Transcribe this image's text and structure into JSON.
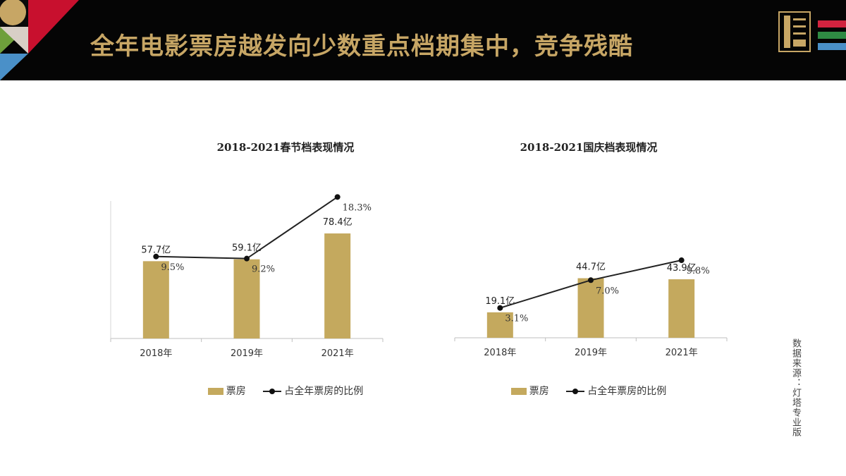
{
  "header": {
    "title": "全年电影票房越发向少数重点档期集中，竞争残酷",
    "accent_color": "#c7a665",
    "logo_icon": "film-award-logo-icon",
    "stripe_colors": [
      "#d2233f",
      "#2f8a43",
      "#4a90c8"
    ]
  },
  "colors": {
    "bar": "#c4a95e",
    "line": "#222222"
  },
  "legend": {
    "bar_label": "票房",
    "line_label": "占全年票房的比例"
  },
  "source_note": "数据来源：灯塔专业版",
  "chart_data": [
    {
      "type": "bar",
      "title": "2018-2021春节档表现情况",
      "categories": [
        "2018年",
        "2019年",
        "2021年"
      ],
      "series": [
        {
          "name": "票房",
          "type": "bar",
          "values": [
            57.7,
            59.1,
            78.4
          ],
          "labels": [
            "57.7亿",
            "59.1亿",
            "78.4亿"
          ]
        },
        {
          "name": "占全年票房的比例",
          "type": "line",
          "values": [
            9.5,
            9.2,
            18.3
          ],
          "labels": [
            "9.5%",
            "9.2%",
            "18.3%"
          ]
        }
      ],
      "legend_position": "bottom"
    },
    {
      "type": "bar",
      "title": "2018-2021国庆档表现情况",
      "categories": [
        "2018年",
        "2019年",
        "2021年"
      ],
      "series": [
        {
          "name": "票房",
          "type": "bar",
          "values": [
            19.1,
            44.7,
            43.9
          ],
          "labels": [
            "19.1亿",
            "44.7亿",
            "43.9亿"
          ]
        },
        {
          "name": "占全年票房的比例",
          "type": "line",
          "values": [
            3.1,
            7.0,
            9.8
          ],
          "labels": [
            "3.1%",
            "7.0%",
            "9.8%"
          ]
        }
      ],
      "legend_position": "bottom"
    }
  ]
}
